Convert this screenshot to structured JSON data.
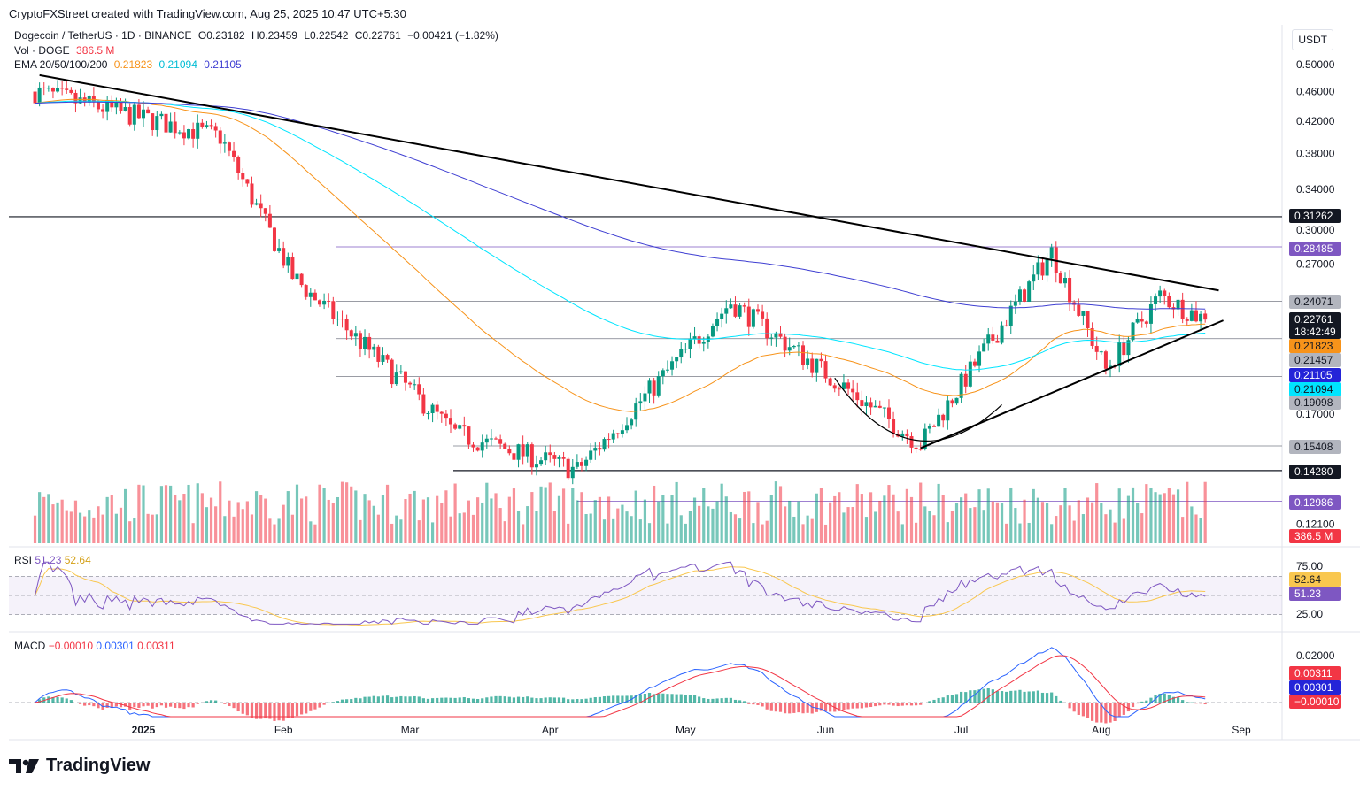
{
  "header": {
    "credit": "CryptoFXStreet created with TradingView.com, Aug 25, 2025 10:47 UTC+5:30",
    "currency": "USDT"
  },
  "legend": {
    "symbol": "Dogecoin / TetherUS · 1D · BINANCE",
    "open": "O0.23182",
    "high": "H0.23459",
    "low": "L0.22542",
    "close": "C0.22761",
    "change": "−0.00421 (−1.82%)",
    "vol_label": "Vol · DOGE",
    "vol_value": "386.5 M",
    "ema_label": "EMA 20/50/100/200",
    "ema_values": [
      "0.21823",
      "0.21094",
      "0.21105"
    ]
  },
  "rsi_legend": {
    "label": "RSI",
    "v1": "51.23",
    "v2": "52.64"
  },
  "macd_legend": {
    "label": "MACD",
    "v1": "−0.00010",
    "v2": "0.00301",
    "v3": "0.00311"
  },
  "colors": {
    "up": "#089981",
    "down": "#f23645",
    "ema50": "#f7931a",
    "ema100": "#00e5ff",
    "ema200": "#3f3fd2",
    "rsi": "#7e57c2",
    "rsi_ma": "#f9c74f",
    "macd": "#2962ff",
    "signal": "#f23645"
  },
  "brand": "TradingView",
  "chart_data": {
    "type": "candlestick",
    "x_axis_labels": [
      "2025",
      "Feb",
      "Mar",
      "Apr",
      "May",
      "Jun",
      "Jul",
      "Aug",
      "Sep"
    ],
    "price_axis_ticks": [
      "0.50000",
      "0.46000",
      "0.42000",
      "0.38000",
      "0.34000",
      "0.30000",
      "0.27000",
      "0.17000",
      "0.12100"
    ],
    "price_labels": [
      {
        "value": "0.31262",
        "style": "dark"
      },
      {
        "value": "0.28485",
        "style": "purple"
      },
      {
        "value": "0.24071",
        "style": "gray"
      },
      {
        "value": "0.22761",
        "style": "dark",
        "sub": "18:42:49"
      },
      {
        "value": "0.21823",
        "style": "orange"
      },
      {
        "value": "0.21457",
        "style": "gray"
      },
      {
        "value": "0.21105",
        "style": "blue"
      },
      {
        "value": "0.21094",
        "style": "cyan"
      },
      {
        "value": "0.19098",
        "style": "gray"
      },
      {
        "value": "0.15408",
        "style": "gray"
      },
      {
        "value": "0.14280",
        "style": "dark"
      },
      {
        "value": "0.12986",
        "style": "purple"
      },
      {
        "value": "386.5 M",
        "style": "red"
      }
    ],
    "rsi_ticks": [
      "75.00",
      "25.00"
    ],
    "rsi_labels": [
      {
        "value": "52.64",
        "style": "yellow"
      },
      {
        "value": "51.23",
        "style": "violet"
      }
    ],
    "macd_ticks": [
      "0.02000"
    ],
    "macd_labels": [
      {
        "value": "0.00311",
        "style": "red"
      },
      {
        "value": "0.00301",
        "style": "blue"
      },
      {
        "value": "−0.00010",
        "style": "red"
      }
    ],
    "horizontal_levels": [
      0.31262,
      0.28485,
      0.24071,
      0.21457,
      0.19098,
      0.15408,
      0.1428,
      0.12986
    ],
    "trendlines": [
      {
        "name": "descending-resistance",
        "from": {
          "date": "2024-12-09",
          "price": 0.484
        },
        "to": {
          "date": "2025-08-27",
          "price": 0.249
        }
      },
      {
        "name": "ascending-support",
        "from": {
          "date": "2025-06-22",
          "price": 0.153
        },
        "to": {
          "date": "2025-08-28",
          "price": 0.227
        }
      }
    ],
    "ema": {
      "20": 0.21823,
      "50": 0.21094,
      "100": 0.21105
    },
    "last": {
      "open": 0.23182,
      "high": 0.23459,
      "low": 0.22542,
      "close": 0.22761
    },
    "key_swings": [
      {
        "date": "2024-12-08",
        "close": 0.46
      },
      {
        "date": "2025-01-18",
        "close": 0.4
      },
      {
        "date": "2025-02-03",
        "close": 0.26
      },
      {
        "date": "2025-03-11",
        "close": 0.16
      },
      {
        "date": "2025-04-07",
        "close": 0.143
      },
      {
        "date": "2025-05-11",
        "close": 0.24
      },
      {
        "date": "2025-06-22",
        "close": 0.155
      },
      {
        "date": "2025-07-21",
        "close": 0.28
      },
      {
        "date": "2025-08-02",
        "close": 0.195
      },
      {
        "date": "2025-08-14",
        "close": 0.245
      },
      {
        "date": "2025-08-24",
        "close": 0.2276
      }
    ]
  }
}
